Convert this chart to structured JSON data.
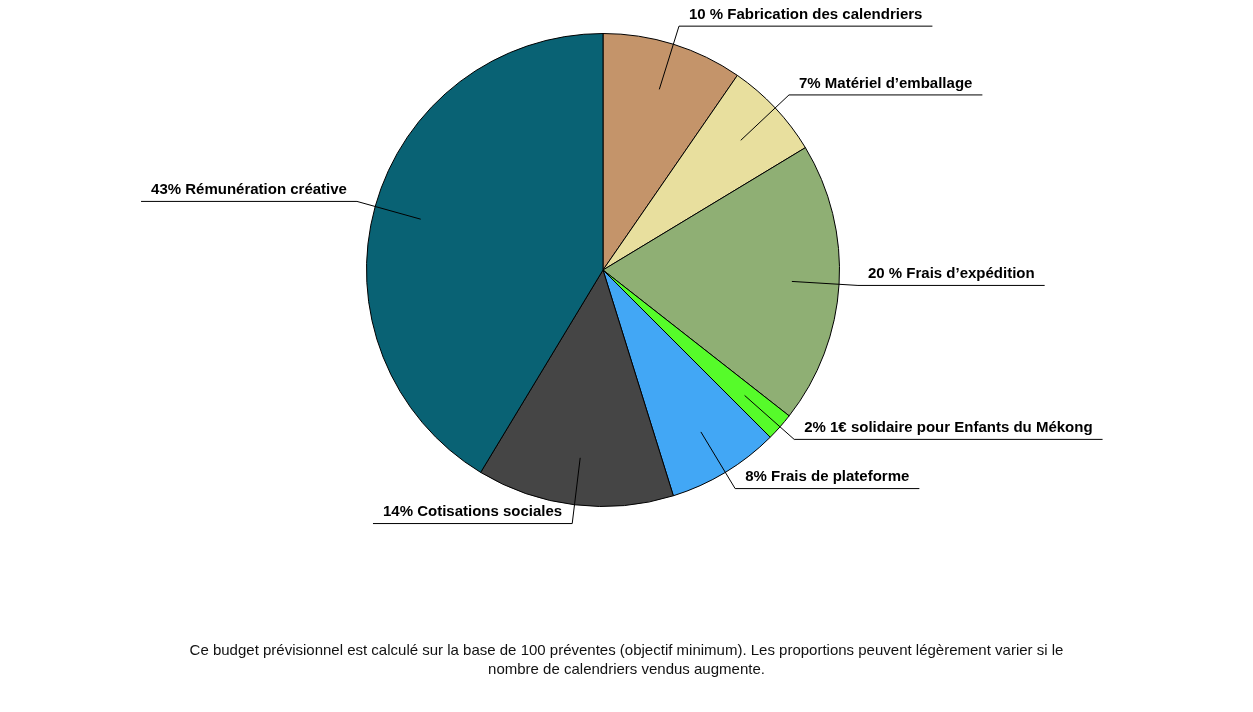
{
  "chart_data": {
    "type": "pie",
    "categories": [
      "Fabrication des calendriers",
      "Matériel d’emballage",
      "Frais d’expédition",
      "1€ solidaire pour Enfants du Mékong",
      "Frais de plateforme",
      "Cotisations sociales",
      "Rémunération créative"
    ],
    "values": [
      10,
      7,
      20,
      2,
      8,
      14,
      43
    ],
    "value_labels": [
      "10 %",
      "7%",
      "20 %",
      "2%",
      "8%",
      "14%",
      "43%"
    ],
    "colors": [
      "#c4946a",
      "#e8df9e",
      "#8faf74",
      "#56fb2a",
      "#42a7f5",
      "#454545",
      "#096274"
    ],
    "legend": false,
    "annotations": [
      "Ce budget prévisionnel est calculé sur la base de 100 préventes (objectif minimum). Les proportions peuvent légèrement varier si le nombre de calendriers vendus augmente."
    ]
  }
}
